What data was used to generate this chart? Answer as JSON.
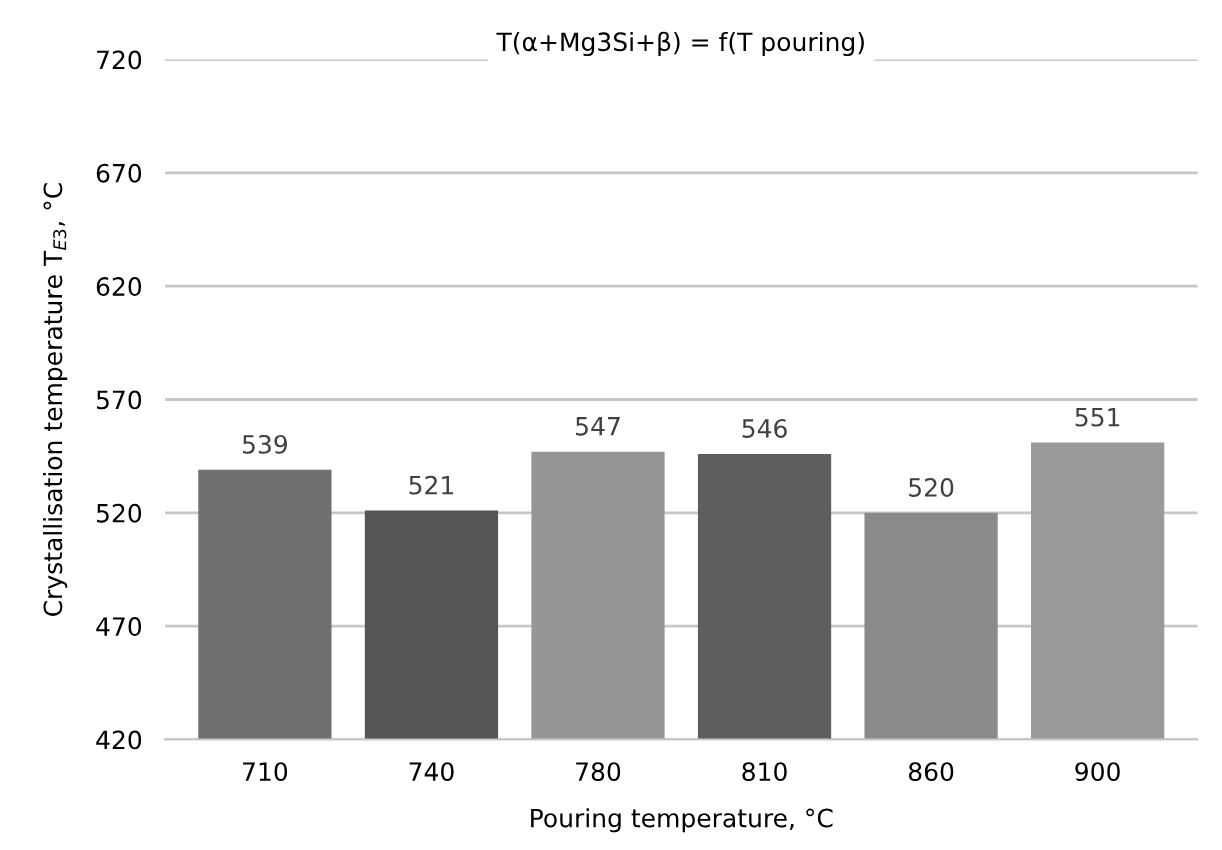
{
  "chart_data": {
    "type": "bar",
    "title": "T(α+Mg3Si+β) = f(T pouring)",
    "xlabel": "Pouring temperature, °C",
    "ylabel": "Crystallisation temperature T$_{E3}$, °C",
    "categories": [
      "710",
      "740",
      "780",
      "810",
      "860",
      "900"
    ],
    "values": [
      539,
      521,
      547,
      546,
      520,
      551
    ],
    "colors": [
      "#707070",
      "#555555",
      "#969696",
      "#5e5e5e",
      "#8a8a8a",
      "#9a9a9a"
    ],
    "ylim": [
      420,
      720
    ],
    "yticks": [
      420,
      470,
      520,
      570,
      620,
      670,
      720
    ],
    "grid": "y",
    "data_labels": true
  }
}
